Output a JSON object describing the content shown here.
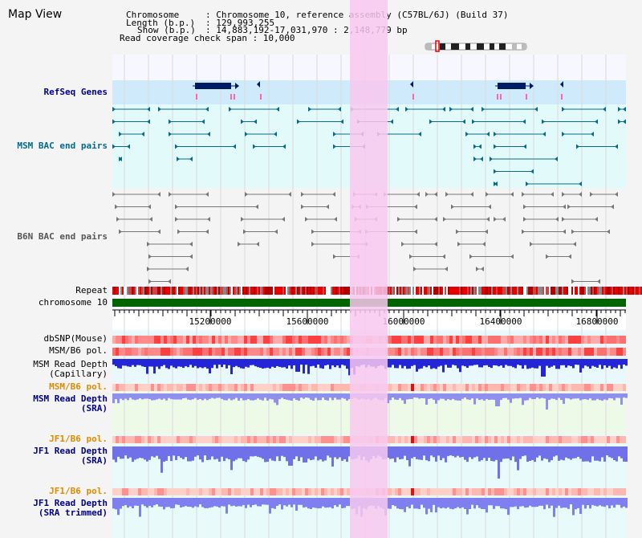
{
  "title": "Map View",
  "info": {
    "chromosome_key": "Chromosome",
    "chromosome_val": ": Chromosome 10, reference assembly (C57BL/6J) (Build 37)",
    "length_key": "Length (b.p.)",
    "length_val": ": 129,993,255",
    "show_key": "Show (b.p.)",
    "show_val": ": 14,883,192-17,031,970 : 2,148,779 bp",
    "coverage_label": "Read coverage check span : 10,000"
  },
  "tracks": {
    "refseq": "RefSeq Genes",
    "msm_bac": "MSM BAC end pairs",
    "b6n_bac": "B6N BAC end pairs",
    "repeat": "Repeat",
    "chromosome": "chromosome 10",
    "dbsnp": "dbSNP(Mouse)",
    "msm_b6_pol": "MSM/B6 pol.",
    "msm_depth_cap_1": "MSM Read Depth",
    "msm_depth_cap_2": "(Capillary)",
    "msm_b6_pol_2": "MSM/B6 pol.",
    "msm_depth_sra_1": "MSM Read Depth",
    "msm_depth_sra_2": "(SRA)",
    "jf1_b6_pol": "JF1/B6 pol.",
    "jf1_depth_sra_1": "JF1 Read Depth",
    "jf1_depth_sra_2": "(SRA)",
    "jf1_b6_pol_2": "JF1/B6 pol.",
    "jf1_depth_trim_1": "JF1 Read Depth",
    "jf1_depth_trim_2": "(SRA trimmed)"
  },
  "axis_ticks": [
    "15200000",
    "15600000",
    "16000000",
    "16400000",
    "16800000"
  ],
  "colors": {
    "refseq_label": "#00008b",
    "msm_label": "#006b8f",
    "b6n_label": "#555555",
    "orange_label": "#e08a00",
    "blue_label": "#00008b",
    "highlight": "#f8c8ee",
    "chrom_bar": "#006400"
  }
}
